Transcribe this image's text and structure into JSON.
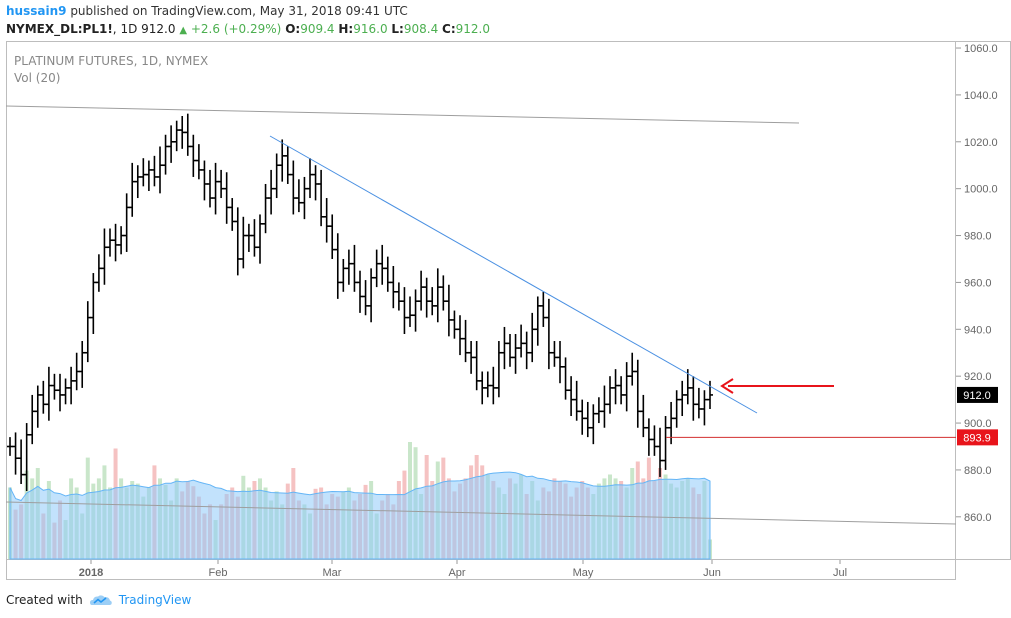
{
  "header": {
    "user": "hussain9",
    "published_text": "published on TradingView.com, May 31, 2018 09:41 UTC",
    "symbol": "NYMEX_DL:PL1!",
    "interval": "1D",
    "last": "912.0",
    "change": "+2.6 (+0.29%)",
    "o_label": "O:",
    "o_value": "909.4",
    "h_label": "H:",
    "h_value": "916.0",
    "l_label": "L:",
    "l_value": "908.4",
    "c_label": "C:",
    "c_value": "912.0"
  },
  "chart_title": "PLATINUM FUTURES, 1D, NYMEX",
  "vol_label": "Vol (20)",
  "footer": {
    "created_with": "Created with",
    "brand": "TradingView"
  },
  "colors": {
    "bar": "#000000",
    "trend": "#4a90e2",
    "support": "#d32f2f",
    "arrow": "#e8141b",
    "vol_up": "#a5d6a7",
    "vol_down": "#ef9a9a",
    "vol_ma": "#90caf9",
    "grid_axis": "#999999",
    "brand": "#2196f3"
  },
  "chart_data": {
    "type": "ohlc",
    "title": "PLATINUM FUTURES, 1D, NYMEX",
    "ylim": [
      842,
      1063
    ],
    "y_ticks": [
      "1060.0",
      "1040.0",
      "1020.0",
      "1000.0",
      "980.0",
      "960.0",
      "940.0",
      "920.0",
      "900.0",
      "880.0",
      "860.0"
    ],
    "x_ticks": [
      "2018",
      "Feb",
      "Mar",
      "Apr",
      "May",
      "Jun",
      "Jul"
    ],
    "last_price_label": "912.0",
    "support_level_label": "893.9",
    "support_level": 893.9,
    "closes": [
      890,
      885,
      878,
      895,
      905,
      912,
      908,
      916,
      914,
      912,
      915,
      918,
      922,
      930,
      945,
      960,
      966,
      975,
      978,
      976,
      980,
      992,
      1003,
      1005,
      1006,
      1008,
      1005,
      1010,
      1018,
      1020,
      1025,
      1024,
      1018,
      1012,
      1008,
      1002,
      996,
      1003,
      1000,
      992,
      986,
      970,
      980,
      980,
      975,
      985,
      996,
      1000,
      1010,
      1014,
      1006,
      996,
      994,
      1000,
      1006,
      1002,
      988,
      984,
      974,
      960,
      966,
      968,
      960,
      954,
      950,
      962,
      968,
      966,
      960,
      956,
      952,
      945,
      946,
      952,
      958,
      952,
      950,
      958,
      952,
      944,
      940,
      936,
      930,
      928,
      918,
      915,
      916,
      915,
      930,
      934,
      928,
      932,
      934,
      930,
      940,
      950,
      945,
      930,
      928,
      924,
      914,
      910,
      905,
      902,
      898,
      904,
      905,
      908,
      915,
      916,
      912,
      920,
      922,
      905,
      898,
      893,
      890,
      884,
      898,
      902,
      910,
      912,
      915,
      908,
      906,
      910,
      912
    ],
    "volume": {
      "label": "Vol (20)",
      "values": [
        0.55,
        0.38,
        0.42,
        0.68,
        0.62,
        0.7,
        0.35,
        0.6,
        0.28,
        0.45,
        0.3,
        0.62,
        0.55,
        0.35,
        0.78,
        0.58,
        0.62,
        0.72,
        0.55,
        0.85,
        0.62,
        0.55,
        0.6,
        0.58,
        0.48,
        0.55,
        0.72,
        0.62,
        0.57,
        0.45,
        0.62,
        0.52,
        0.6,
        0.56,
        0.48,
        0.35,
        0.42,
        0.3,
        0.42,
        0.5,
        0.55,
        0.48,
        0.64,
        0.55,
        0.6,
        0.62,
        0.55,
        0.45,
        0.52,
        0.42,
        0.58,
        0.7,
        0.45,
        0.42,
        0.35,
        0.54,
        0.55,
        0.42,
        0.5,
        0.48,
        0.52,
        0.55,
        0.45,
        0.5,
        0.57,
        0.6,
        0.35,
        0.45,
        0.5,
        0.42,
        0.6,
        0.68,
        0.9,
        0.86,
        0.5,
        0.8,
        0.6,
        0.75,
        0.78,
        0.62,
        0.52,
        0.58,
        0.62,
        0.72,
        0.8,
        0.72,
        0.65,
        0.6,
        0.55,
        0.5,
        0.62,
        0.58,
        0.65,
        0.5,
        0.6,
        0.45,
        0.55,
        0.52,
        0.62,
        0.6,
        0.58,
        0.48,
        0.55,
        0.6,
        0.55,
        0.5,
        0.58,
        0.62,
        0.65,
        0.62,
        0.6,
        0.55,
        0.7,
        0.75,
        0.62,
        0.78,
        0.6,
        0.7,
        0.65,
        0.58,
        0.55,
        0.6,
        0.62,
        0.55,
        0.5,
        0.6,
        0.15
      ]
    }
  }
}
